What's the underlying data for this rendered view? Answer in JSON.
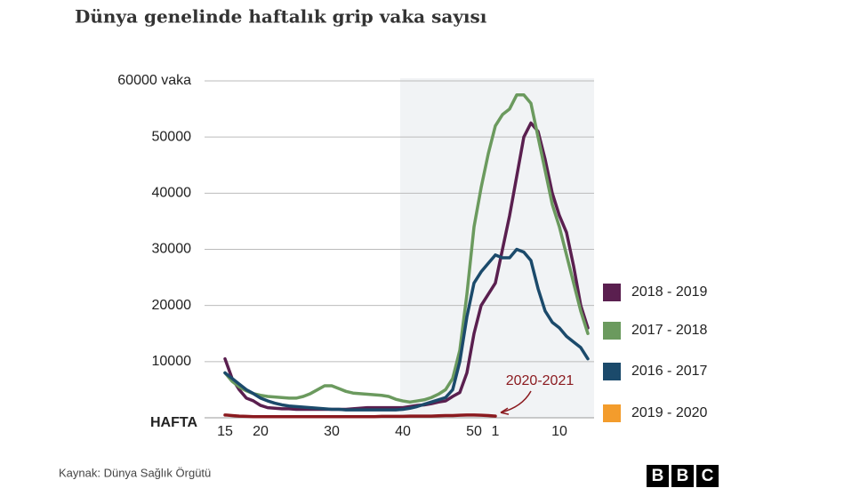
{
  "chart_data": {
    "type": "line",
    "title": "Dünya genelinde haftalık grip vaka sayısı",
    "x_label": "HAFTA",
    "source": "Kaynak: Dünya Sağlık Örgütü",
    "logo": [
      "B",
      "B",
      "C"
    ],
    "categories": [
      "15",
      null,
      null,
      null,
      null,
      "20",
      null,
      null,
      null,
      null,
      null,
      null,
      null,
      null,
      null,
      "30",
      null,
      null,
      null,
      null,
      null,
      null,
      null,
      null,
      null,
      "40",
      null,
      null,
      null,
      null,
      null,
      null,
      null,
      null,
      null,
      "50",
      null,
      null,
      "1",
      null,
      null,
      null,
      null,
      null,
      null,
      null,
      null,
      "10",
      null,
      null,
      null,
      null
    ],
    "ylim": [
      0,
      60000
    ],
    "yticks": [
      10000,
      20000,
      30000,
      40000,
      50000,
      {
        "value": 60000,
        "label": "60000 vaka"
      }
    ],
    "grid": true,
    "series": [
      {
        "name": "2020-2021",
        "color": "#8b1a1f",
        "legend": false,
        "values": [
          500,
          400,
          300,
          250,
          200,
          200,
          200,
          200,
          200,
          200,
          200,
          200,
          200,
          200,
          200,
          200,
          200,
          200,
          200,
          200,
          200,
          200,
          250,
          250,
          250,
          250,
          300,
          300,
          300,
          300,
          350,
          400,
          400,
          450,
          500,
          500,
          450,
          400,
          300,
          null,
          null,
          null,
          null,
          null,
          null,
          null,
          null,
          null,
          null,
          null,
          null,
          null
        ]
      },
      {
        "name": "2018 - 2019",
        "color": "#5a1f4f",
        "values": [
          10500,
          7000,
          5000,
          3500,
          3000,
          2200,
          1800,
          1700,
          1600,
          1600,
          1500,
          1500,
          1500,
          1500,
          1500,
          1500,
          1500,
          1500,
          1600,
          1700,
          1800,
          1800,
          1800,
          1800,
          1800,
          1800,
          2000,
          2200,
          2300,
          2500,
          2800,
          3000,
          3800,
          4500,
          8000,
          15000,
          20000,
          22000,
          24000,
          30000,
          36000,
          43000,
          50000,
          52500,
          51000,
          46000,
          40000,
          36000,
          33000,
          27000,
          20000,
          16000
        ]
      },
      {
        "name": "2017 - 2018",
        "color": "#6b9a5e",
        "values": [
          8000,
          6500,
          5500,
          4800,
          4300,
          4000,
          3800,
          3700,
          3600,
          3500,
          3500,
          3800,
          4300,
          5000,
          5700,
          5700,
          5200,
          4700,
          4400,
          4300,
          4200,
          4100,
          4000,
          3800,
          3300,
          3000,
          2800,
          3000,
          3200,
          3600,
          4200,
          5000,
          7000,
          12000,
          22000,
          34000,
          41000,
          47000,
          52000,
          54000,
          55000,
          57500,
          57500,
          56000,
          50000,
          44000,
          38000,
          34000,
          29000,
          24000,
          19000,
          15000
        ]
      },
      {
        "name": "2016 - 2017",
        "color": "#1b4a6b",
        "values": [
          8000,
          7000,
          6000,
          5000,
          4300,
          3500,
          3000,
          2600,
          2300,
          2100,
          2000,
          1900,
          1800,
          1700,
          1600,
          1500,
          1500,
          1400,
          1400,
          1400,
          1400,
          1400,
          1400,
          1400,
          1400,
          1500,
          1700,
          2000,
          2400,
          2800,
          3200,
          3600,
          5000,
          10000,
          18000,
          24000,
          26000,
          27500,
          29000,
          28500,
          28500,
          30000,
          29500,
          28000,
          23000,
          19000,
          17000,
          16000,
          14500,
          13500,
          12500,
          10500
        ]
      },
      {
        "name": "2019 - 2020",
        "color": "#f39c2c",
        "values": [
          null,
          null,
          null,
          null,
          null,
          null,
          null,
          null,
          null,
          null,
          null,
          null,
          null,
          null,
          null,
          null,
          null,
          null,
          null,
          null,
          null,
          null,
          null,
          null,
          null,
          null,
          null,
          null,
          null,
          null,
          null,
          null,
          null,
          null,
          null,
          null,
          null,
          null,
          null,
          null,
          null,
          null,
          null,
          null,
          null,
          null,
          null,
          null,
          null,
          null,
          null,
          null
        ]
      }
    ]
  }
}
